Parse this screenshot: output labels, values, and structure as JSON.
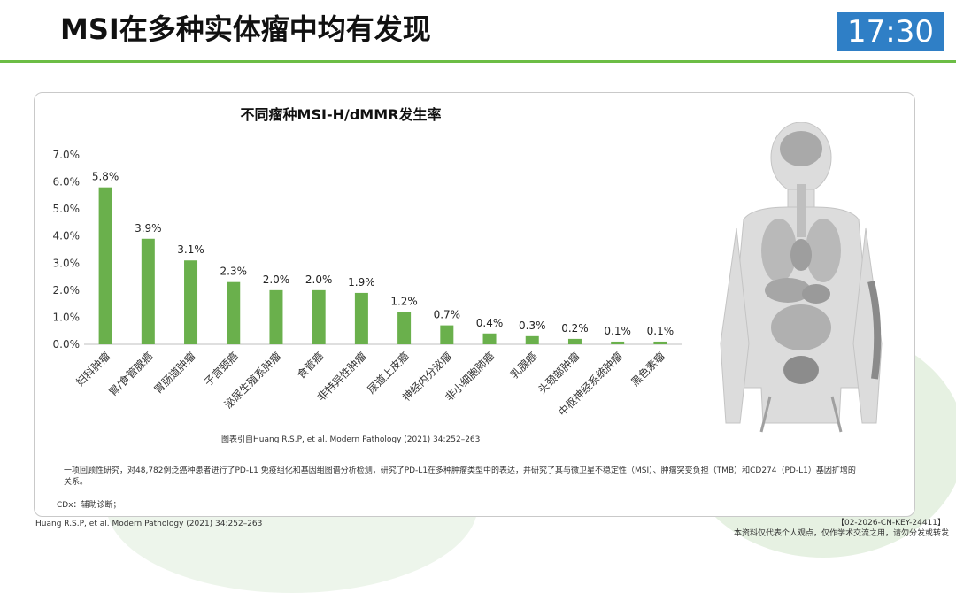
{
  "header": {
    "title": "MSI在多种实体瘤中均有发现",
    "timer": "17:30"
  },
  "colors": {
    "accent_green": "#6cbd45",
    "bar_green": "#6ab04c",
    "timer_blue": "#2f7fc6"
  },
  "chart_data": {
    "type": "bar",
    "title": "不同瘤种MSI-H/dMMR发生率",
    "categories": [
      "妇科肿瘤",
      "胃/食管腺癌",
      "胃肠道肿瘤",
      "子宫颈癌",
      "泌尿生殖系肿瘤",
      "食管癌",
      "非特异性肿瘤",
      "尿道上皮癌",
      "神经内分泌瘤",
      "非小细胞肺癌",
      "乳腺癌",
      "头颈部肿瘤",
      "中枢神经系统肿瘤",
      "黑色素瘤"
    ],
    "values": [
      5.8,
      3.9,
      3.1,
      2.3,
      2.0,
      2.0,
      1.9,
      1.2,
      0.7,
      0.4,
      0.3,
      0.2,
      0.1,
      0.1
    ],
    "value_labels": [
      "5.8%",
      "3.9%",
      "3.1%",
      "2.3%",
      "2.0%",
      "2.0%",
      "1.9%",
      "1.2%",
      "0.7%",
      "0.4%",
      "0.3%",
      "0.2%",
      "0.1%",
      "0.1%"
    ],
    "ylim": [
      0,
      7
    ],
    "yticks": [
      "0.0%",
      "1.0%",
      "2.0%",
      "3.0%",
      "4.0%",
      "5.0%",
      "6.0%",
      "7.0%"
    ],
    "xlabel": "",
    "ylabel": "",
    "grid": false,
    "legend": "none"
  },
  "footnotes": {
    "source": "图表引自Huang R.S.P, et al. Modern Pathology (2021) 34:252–263",
    "description": "一项回顾性研究，对48,782例泛癌种患者进行了PD-L1 免疫组化和基因组图谱分析检测，研究了PD-L1在多种肿瘤类型中的表达，并研究了其与微卫星不稳定性（MSI）、肿瘤突变负担（TMB）和CD274（PD-L1）基因扩增的关系。",
    "cdx": "CDx：辅助诊断；",
    "reference": "Huang R.S.P, et al. Modern Pathology (2021) 34:252–263",
    "code": "【02-2026-CN-KEY-24411】",
    "disclaimer": "本资料仅代表个人观点，仅作学术交流之用，请勿分发或转发"
  },
  "figure": {
    "icon": "human-anatomy-icon"
  }
}
